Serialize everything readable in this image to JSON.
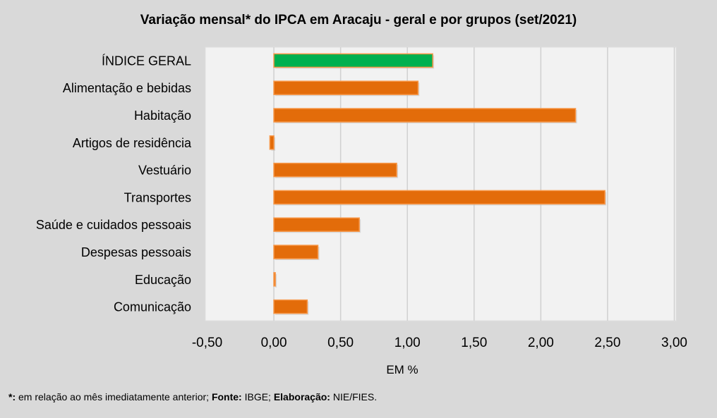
{
  "chart_data": {
    "type": "bar",
    "orientation": "horizontal",
    "title": "Variação  mensal*  do IPCA em Aracaju  - geral e por grupos  (set/2021)",
    "xlabel": "EM %",
    "ylabel": "",
    "xlim": [
      -0.5,
      3.0
    ],
    "xticks": [
      -0.5,
      0,
      0.5,
      1.0,
      1.5,
      2.0,
      2.5,
      3.0
    ],
    "xtick_labels": [
      "-0,50",
      "0,00",
      "0,50",
      "1,00",
      "1,50",
      "2,00",
      "2,50",
      "3,00"
    ],
    "grid": true,
    "categories": [
      "ÍNDICE GERAL",
      "Alimentação e bebidas",
      "Habitação",
      "Artigos de residência",
      "Vestuário",
      "Transportes",
      "Saúde e cuidados pessoais",
      "Despesas pessoais",
      "Educação",
      "Comunicação"
    ],
    "values": [
      1.19,
      1.08,
      2.26,
      -0.03,
      0.92,
      2.48,
      0.64,
      0.33,
      0.01,
      0.25
    ],
    "colors": {
      "highlight": "#00b050",
      "default": "#e36c0a",
      "border": "#f79646"
    }
  },
  "footer": {
    "mark": "*:",
    "note": " em relação ao mês imediatamente  anterior; ",
    "source_label": "Fonte:",
    "source": " IBGE; ",
    "author_label": "Elaboração:",
    "author": " NIE/FIES."
  }
}
